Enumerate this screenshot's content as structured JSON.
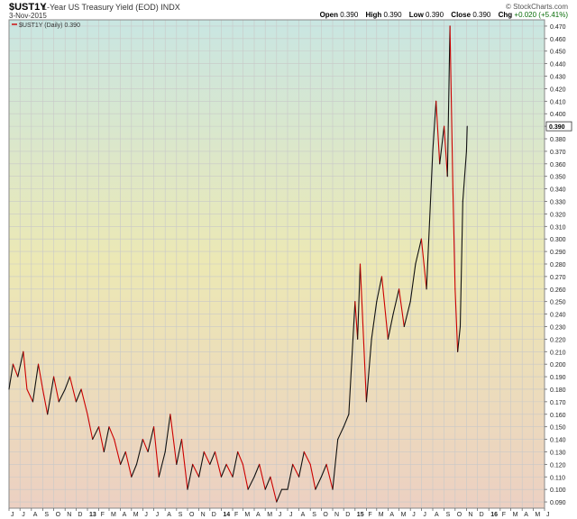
{
  "header": {
    "symbol": "$UST1Y",
    "description": "1-Year US Treasury Yield (EOD) INDX",
    "date": "3-Nov-2015",
    "credit": "© StockCharts.com",
    "open_label": "Open",
    "open_value": "0.390",
    "high_label": "High",
    "high_value": "0.390",
    "low_label": "Low",
    "low_value": "0.390",
    "close_label": "Close",
    "close_value": "0.390",
    "chg_label": "Chg",
    "chg_value": "+0.020 (+5.41%)"
  },
  "colors": {
    "line_up": "#111111",
    "line_down": "#cc0000",
    "grid": "#c8c8c8",
    "bg_top": "#c9e6e2",
    "bg_mid": "#ece8b4",
    "bg_bottom": "#ecd0c2",
    "last_value_box": "#ffffff"
  },
  "chart_data": {
    "type": "line",
    "title": "$UST1Y (Daily) 0.390",
    "last_value_label": "0.390",
    "ylim": [
      0.085,
      0.475
    ],
    "y_ticks": [
      0.09,
      0.1,
      0.11,
      0.12,
      0.13,
      0.14,
      0.15,
      0.16,
      0.17,
      0.18,
      0.19,
      0.2,
      0.21,
      0.22,
      0.23,
      0.24,
      0.25,
      0.26,
      0.27,
      0.28,
      0.29,
      0.3,
      0.31,
      0.32,
      0.33,
      0.34,
      0.35,
      0.36,
      0.37,
      0.38,
      0.39,
      0.4,
      0.41,
      0.42,
      0.43,
      0.44,
      0.45,
      0.46,
      0.47
    ],
    "y_tick_labels": [
      "0.090",
      "0.100",
      "0.110",
      "0.120",
      "0.130",
      "0.140",
      "0.150",
      "0.160",
      "0.170",
      "0.180",
      "0.190",
      "0.200",
      "0.210",
      "0.220",
      "0.230",
      "0.240",
      "0.250",
      "0.260",
      "0.270",
      "0.280",
      "0.290",
      "0.300",
      "0.310",
      "0.320",
      "0.330",
      "0.340",
      "0.350",
      "0.360",
      "0.370",
      "0.380",
      "0.390",
      "0.400",
      "0.410",
      "0.420",
      "0.430",
      "0.440",
      "0.450",
      "0.460",
      "0.470"
    ],
    "x_ticks": [
      "J",
      "J",
      "A",
      "S",
      "O",
      "N",
      "D",
      "13",
      "F",
      "M",
      "A",
      "M",
      "J",
      "J",
      "A",
      "S",
      "O",
      "N",
      "D",
      "14",
      "F",
      "M",
      "A",
      "M",
      "J",
      "J",
      "A",
      "S",
      "O",
      "N",
      "D",
      "15",
      "F",
      "M",
      "A",
      "M",
      "J",
      "J",
      "A",
      "S",
      "O",
      "N",
      "D",
      "16",
      "F",
      "M",
      "A",
      "M",
      "J"
    ],
    "x_bold": [
      "13",
      "14",
      "15",
      "16"
    ],
    "x_start": "2012-06-01",
    "x_end": "2016-06-01",
    "series": [
      {
        "name": "$UST1Y",
        "x": [
          "2012-06-01",
          "2012-06-12",
          "2012-06-25",
          "2012-07-10",
          "2012-07-20",
          "2012-08-05",
          "2012-08-20",
          "2012-09-01",
          "2012-09-14",
          "2012-10-01",
          "2012-10-15",
          "2012-11-01",
          "2012-11-14",
          "2012-12-01",
          "2012-12-15",
          "2013-01-01",
          "2013-01-15",
          "2013-02-01",
          "2013-02-15",
          "2013-03-01",
          "2013-03-15",
          "2013-04-01",
          "2013-04-15",
          "2013-05-01",
          "2013-05-15",
          "2013-06-01",
          "2013-06-15",
          "2013-07-01",
          "2013-07-15",
          "2013-08-01",
          "2013-08-15",
          "2013-09-01",
          "2013-09-15",
          "2013-10-01",
          "2013-10-15",
          "2013-11-01",
          "2013-11-15",
          "2013-12-01",
          "2013-12-15",
          "2014-01-01",
          "2014-01-15",
          "2014-02-01",
          "2014-02-15",
          "2014-03-01",
          "2014-03-15",
          "2014-04-01",
          "2014-04-15",
          "2014-05-01",
          "2014-05-15",
          "2014-06-01",
          "2014-06-15",
          "2014-07-01",
          "2014-07-15",
          "2014-08-01",
          "2014-08-15",
          "2014-09-01",
          "2014-09-15",
          "2014-10-01",
          "2014-10-15",
          "2014-11-01",
          "2014-11-15",
          "2014-12-01",
          "2014-12-15",
          "2015-01-01",
          "2015-01-08",
          "2015-01-15",
          "2015-02-01",
          "2015-02-15",
          "2015-03-01",
          "2015-03-15",
          "2015-04-01",
          "2015-04-15",
          "2015-05-01",
          "2015-05-15",
          "2015-06-01",
          "2015-06-15",
          "2015-07-01",
          "2015-07-15",
          "2015-08-01",
          "2015-08-10",
          "2015-08-20",
          "2015-09-01",
          "2015-09-10",
          "2015-09-17",
          "2015-09-25",
          "2015-10-01",
          "2015-10-08",
          "2015-10-15",
          "2015-10-22",
          "2015-11-01",
          "2015-11-03"
        ],
        "values": [
          0.18,
          0.2,
          0.19,
          0.21,
          0.18,
          0.17,
          0.2,
          0.18,
          0.16,
          0.19,
          0.17,
          0.18,
          0.19,
          0.17,
          0.18,
          0.16,
          0.14,
          0.15,
          0.13,
          0.15,
          0.14,
          0.12,
          0.13,
          0.11,
          0.12,
          0.14,
          0.13,
          0.15,
          0.11,
          0.13,
          0.16,
          0.12,
          0.14,
          0.1,
          0.12,
          0.11,
          0.13,
          0.12,
          0.13,
          0.11,
          0.12,
          0.11,
          0.13,
          0.12,
          0.1,
          0.11,
          0.12,
          0.1,
          0.11,
          0.09,
          0.1,
          0.1,
          0.12,
          0.11,
          0.13,
          0.12,
          0.1,
          0.11,
          0.12,
          0.1,
          0.14,
          0.15,
          0.16,
          0.25,
          0.22,
          0.28,
          0.17,
          0.22,
          0.25,
          0.27,
          0.22,
          0.24,
          0.26,
          0.23,
          0.25,
          0.28,
          0.3,
          0.26,
          0.37,
          0.41,
          0.36,
          0.39,
          0.35,
          0.47,
          0.34,
          0.26,
          0.21,
          0.23,
          0.33,
          0.37,
          0.39
        ]
      }
    ]
  }
}
